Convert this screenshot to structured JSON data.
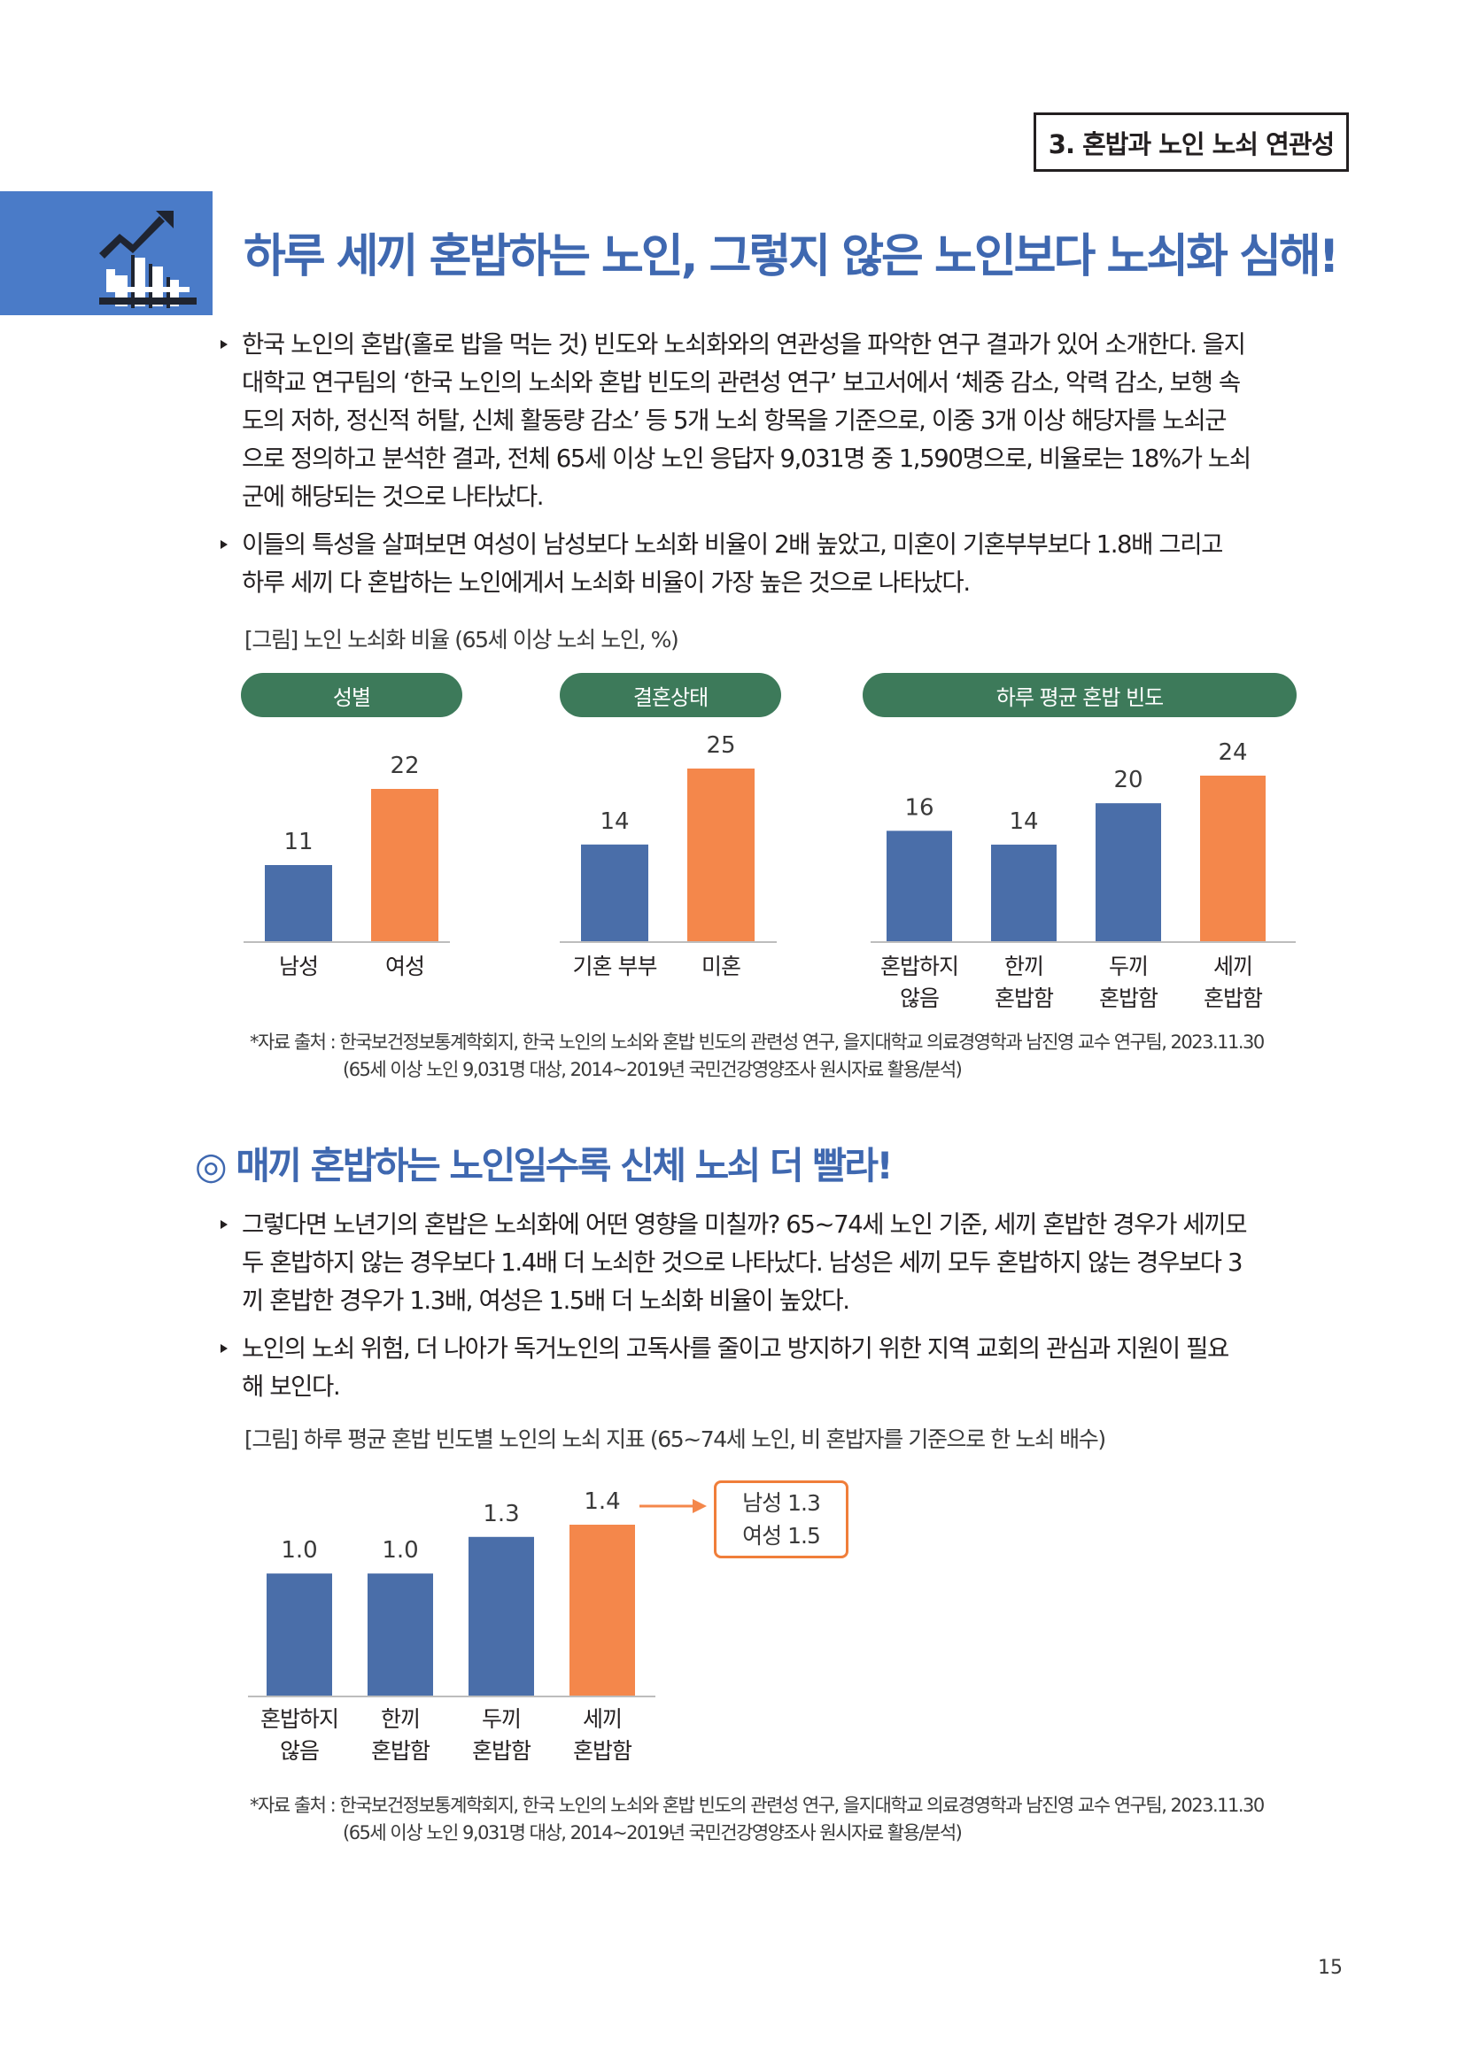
{
  "header": {
    "section_tag": "3. 혼밥과 노인 노쇠 연관성"
  },
  "headline": "하루 세끼 혼밥하는 노인, 그렇지 않은 노인보다 노쇠화 심해!",
  "section1": {
    "bullets": [
      [
        "한국 노인의 혼밥(홀로 밥을 먹는 것) 빈도와 노쇠화와의 연관성을 파악한 연구 결과가 있어 소개한다. 을지",
        "대학교 연구팀의 ‘한국 노인의 노쇠와 혼밥 빈도의 관련성 연구’ 보고서에서 ‘체중 감소, 악력 감소, 보행 속",
        "도의 저하, 정신적 허탈, 신체 활동량 감소’ 등 5개 노쇠 항목을 기준으로, 이중 3개 이상 해당자를 노쇠군",
        "으로 정의하고 분석한 결과, 전체 65세 이상 노인 응답자 9,031명 중 1,590명으로, 비율로는 18%가 노쇠",
        "군에 해당되는 것으로 나타났다."
      ],
      [
        "이들의 특성을 살펴보면 여성이 남성보다 노쇠화 비율이 2배 높았고, 미혼이 기혼부부보다 1.8배 그리고",
        "하루 세끼 다 혼밥하는 노인에게서 노쇠화 비율이 가장 높은 것으로 나타났다."
      ]
    ],
    "figure_caption": "[그림] 노인 노쇠화 비율 (65세 이상 노쇠 노인, %)",
    "groups": [
      "성별",
      "결혼상태",
      "하루 평균 혼밥 빈도"
    ],
    "source": [
      "*자료 출처 : 한국보건정보통계학회지, 한국 노인의 노쇠와 혼밥 빈도의 관련성 연구, 을지대학교 의료경영학과 남진영 교수 연구팀, 2023.11.30",
      "(65세 이상 노인 9,031명 대상, 2014~2019년 국민건강영양조사 원시자료 활용/분석)"
    ]
  },
  "section2": {
    "subhead": "◎ 매끼 혼밥하는 노인일수록 신체 노쇠 더 빨라!",
    "bullets": [
      [
        "그렇다면 노년기의 혼밥은 노쇠화에 어떤 영향을 미칠까? 65~74세 노인 기준, 세끼 혼밥한 경우가 세끼모",
        "두 혼밥하지 않는 경우보다 1.4배 더 노쇠한 것으로 나타났다. 남성은 세끼 모두 혼밥하지 않는 경우보다 3",
        "끼 혼밥한 경우가 1.3배, 여성은 1.5배 더 노쇠화 비율이 높았다."
      ],
      [
        "노인의 노쇠 위험, 더 나아가 독거노인의 고독사를 줄이고 방지하기 위한 지역 교회의 관심과 지원이 필요",
        "해 보인다."
      ]
    ],
    "figure_caption": "[그림] 하루 평균 혼밥 빈도별 노인의 노쇠 지표 (65~74세 노인, 비 혼밥자를 기준으로 한 노쇠 배수)",
    "callout": [
      "남성 1.3",
      "여성 1.5"
    ],
    "source": [
      "*자료 출처 : 한국보건정보통계학회지, 한국 노인의 노쇠와 혼밥 빈도의 관련성 연구, 을지대학교 의료경영학과 남진영 교수 연구팀, 2023.11.30",
      "(65세 이상 노인 9,031명 대상, 2014~2019년 국민건강영양조사 원시자료 활용/분석)"
    ]
  },
  "colors": {
    "blue": "#4a6ea9",
    "orange": "#f4874b",
    "green": "#3d7a5a",
    "headline": "#3f68b0"
  },
  "chart_data": [
    {
      "type": "bar",
      "title": "성별",
      "categories": [
        [
          "남성"
        ],
        [
          "여성"
        ]
      ],
      "values": [
        11,
        22
      ],
      "value_labels": [
        "11",
        "22"
      ],
      "highlight": [
        false,
        true
      ],
      "ylim": [
        0,
        26
      ]
    },
    {
      "type": "bar",
      "title": "결혼상태",
      "categories": [
        [
          "기혼 부부"
        ],
        [
          "미혼"
        ]
      ],
      "values": [
        14,
        25
      ],
      "value_labels": [
        "14",
        "25"
      ],
      "highlight": [
        false,
        true
      ],
      "ylim": [
        0,
        26
      ]
    },
    {
      "type": "bar",
      "title": "하루 평균 혼밥 빈도",
      "categories": [
        [
          "혼밥하지",
          "않음"
        ],
        [
          "한끼",
          "혼밥함"
        ],
        [
          "두끼",
          "혼밥함"
        ],
        [
          "세끼",
          "혼밥함"
        ]
      ],
      "values": [
        16,
        14,
        20,
        24
      ],
      "value_labels": [
        "16",
        "14",
        "20",
        "24"
      ],
      "highlight": [
        false,
        false,
        false,
        true
      ],
      "ylim": [
        0,
        26
      ]
    },
    {
      "type": "bar",
      "categories": [
        [
          "혼밥하지",
          "않음"
        ],
        [
          "한끼",
          "혼밥함"
        ],
        [
          "두끼",
          "혼밥함"
        ],
        [
          "세끼",
          "혼밥함"
        ]
      ],
      "values": [
        1.0,
        1.0,
        1.3,
        1.4
      ],
      "value_labels": [
        "1.0",
        "1.0",
        "1.3",
        "1.4"
      ],
      "highlight": [
        false,
        false,
        false,
        true
      ],
      "ylim": [
        0,
        1.5
      ]
    }
  ],
  "page_number": "15"
}
